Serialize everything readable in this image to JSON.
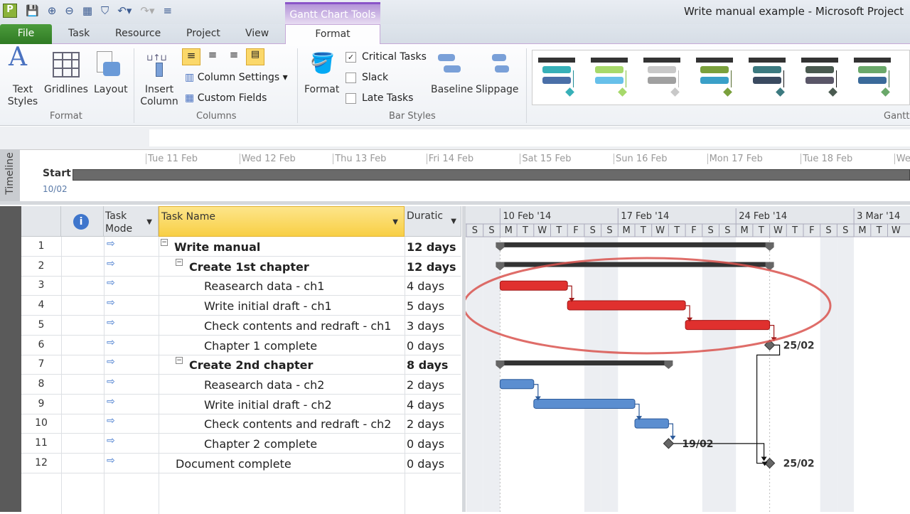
{
  "window": {
    "title": "Write manual example  -  Microsoft Project",
    "context_tab": "Gantt Chart Tools"
  },
  "tabs": [
    "File",
    "Task",
    "Resource",
    "Project",
    "View",
    "Format"
  ],
  "ribbon": {
    "format_group": {
      "label": "Format",
      "text_styles": "Text Styles",
      "gridlines": "Gridlines",
      "layout": "Layout"
    },
    "columns_group": {
      "label": "Columns",
      "insert_column": "Insert Column",
      "column_settings": "Column Settings",
      "custom_fields": "Custom Fields"
    },
    "bar_styles_group": {
      "label": "Bar Styles",
      "format": "Format",
      "critical_tasks": "Critical Tasks",
      "critical_checked": true,
      "slack": "Slack",
      "late_tasks": "Late Tasks",
      "baseline": "Baseline",
      "slippage": "Slippage"
    },
    "gantt_styles_label": "Gantt",
    "style_colors": [
      [
        "#37b0b8",
        "#4a6fa8",
        "#1e8c95"
      ],
      [
        "#a7d96b",
        "#67c0ea",
        "#7cbf3c"
      ],
      [
        "#c8c8c8",
        "#a0a0a0",
        "#bbb"
      ],
      [
        "#7aa03c",
        "#3aa0c8",
        "#556b2f"
      ],
      [
        "#3c7a80",
        "#3a4a60",
        "#111"
      ],
      [
        "#4a5a50",
        "#5a5668",
        "#111"
      ],
      [
        "#6aa86a",
        "#3a6a9a",
        "#3a6a40"
      ]
    ]
  },
  "timeline": {
    "label": "Timeline",
    "start_label": "Start",
    "start_date": "10/02",
    "dates": [
      "Tue 11 Feb",
      "Wed 12 Feb",
      "Thu 13 Feb",
      "Fri 14 Feb",
      "Sat 15 Feb",
      "Sun 16 Feb",
      "Mon 17 Feb",
      "Tue 18 Feb",
      "We"
    ]
  },
  "table": {
    "headers": {
      "task_mode": "Task Mode",
      "task_name": "Task Name",
      "duration": "Duratic"
    },
    "rows": [
      {
        "id": "1",
        "name": "Write manual",
        "duration": "12 days",
        "level": 0,
        "summary": true
      },
      {
        "id": "2",
        "name": "Create 1st chapter",
        "duration": "12 days",
        "level": 1,
        "summary": true
      },
      {
        "id": "3",
        "name": "Reasearch data - ch1",
        "duration": "4 days",
        "level": 2
      },
      {
        "id": "4",
        "name": "Write initial draft - ch1",
        "duration": "5 days",
        "level": 2
      },
      {
        "id": "5",
        "name": "Check contents and redraft - ch1",
        "duration": "3 days",
        "level": 2
      },
      {
        "id": "6",
        "name": "Chapter 1 complete",
        "duration": "0 days",
        "level": 2
      },
      {
        "id": "7",
        "name": "Create 2nd chapter",
        "duration": "8 days",
        "level": 1,
        "summary": true
      },
      {
        "id": "8",
        "name": "Reasearch data - ch2",
        "duration": "2 days",
        "level": 2
      },
      {
        "id": "9",
        "name": "Write initial draft - ch2",
        "duration": "4 days",
        "level": 2
      },
      {
        "id": "10",
        "name": "Check contents and redraft - ch2",
        "duration": "2 days",
        "level": 2
      },
      {
        "id": "11",
        "name": "Chapter 2 complete",
        "duration": "0 days",
        "level": 2
      },
      {
        "id": "12",
        "name": "Document complete",
        "duration": "0 days",
        "level": 1
      }
    ]
  },
  "gantt": {
    "weeks": [
      "10 Feb '14",
      "17 Feb '14",
      "24 Feb '14",
      "3 Mar '14"
    ],
    "days": [
      "S",
      "S",
      "M",
      "T",
      "W",
      "T",
      "F",
      "S",
      "S",
      "M",
      "T",
      "W",
      "T",
      "F",
      "S",
      "S",
      "M",
      "T",
      "W",
      "T",
      "F",
      "S",
      "S",
      "M",
      "T",
      "W"
    ],
    "colors": {
      "critical": "#e0302e",
      "normal": "#5b8ed0",
      "summary": "#333333",
      "milestone": "#666666",
      "highlight": "#d9534f"
    },
    "bars": [
      {
        "row": 1,
        "type": "summary",
        "start": "2014-02-10",
        "finish": "2014-02-25"
      },
      {
        "row": 2,
        "type": "summary",
        "start": "2014-02-10",
        "finish": "2014-02-25"
      },
      {
        "row": 3,
        "type": "critical",
        "start": "2014-02-10",
        "finish": "2014-02-13"
      },
      {
        "row": 4,
        "type": "critical",
        "start": "2014-02-14",
        "finish": "2014-02-20"
      },
      {
        "row": 5,
        "type": "critical",
        "start": "2014-02-21",
        "finish": "2014-02-25"
      },
      {
        "row": 6,
        "type": "milestone",
        "finish": "2014-02-25",
        "label": "25/02"
      },
      {
        "row": 7,
        "type": "summary",
        "start": "2014-02-10",
        "finish": "2014-02-19"
      },
      {
        "row": 8,
        "type": "normal",
        "start": "2014-02-10",
        "finish": "2014-02-11"
      },
      {
        "row": 9,
        "type": "normal",
        "start": "2014-02-12",
        "finish": "2014-02-17"
      },
      {
        "row": 10,
        "type": "normal",
        "start": "2014-02-18",
        "finish": "2014-02-19"
      },
      {
        "row": 11,
        "type": "milestone",
        "finish": "2014-02-19",
        "label": "19/02"
      },
      {
        "row": 12,
        "type": "milestone",
        "finish": "2014-02-25",
        "label": "25/02"
      }
    ],
    "links": [
      [
        3,
        4
      ],
      [
        4,
        5
      ],
      [
        5,
        6
      ],
      [
        8,
        9
      ],
      [
        9,
        10
      ],
      [
        10,
        11
      ],
      [
        6,
        12
      ],
      [
        11,
        12
      ]
    ]
  }
}
